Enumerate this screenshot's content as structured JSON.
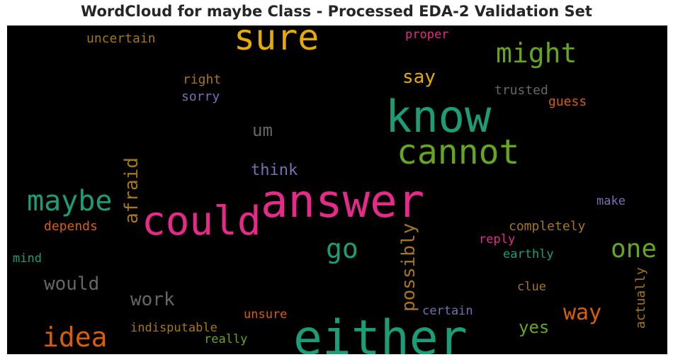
{
  "chart_data": {
    "type": "wordcloud",
    "title": "WordCloud for maybe Class - Processed EDA-2 Validation Set",
    "background": "#000000",
    "words": [
      {
        "text": "answer",
        "color": "#e7298a",
        "weight": 70
      },
      {
        "text": "either",
        "color": "#1b9e77",
        "weight": 72
      },
      {
        "text": "know",
        "color": "#1b9e77",
        "weight": 66
      },
      {
        "text": "sure",
        "color": "#e6ab02",
        "weight": 54
      },
      {
        "text": "could",
        "color": "#e7298a",
        "weight": 58
      },
      {
        "text": "cannot",
        "color": "#66a61e",
        "weight": 50
      },
      {
        "text": "maybe",
        "color": "#1b9e77",
        "weight": 44
      },
      {
        "text": "might",
        "color": "#66a61e",
        "weight": 40
      },
      {
        "text": "idea",
        "color": "#d95f02",
        "weight": 40
      },
      {
        "text": "one",
        "color": "#66a61e",
        "weight": 38
      },
      {
        "text": "go",
        "color": "#1b9e77",
        "weight": 38
      },
      {
        "text": "way",
        "color": "#d95f02",
        "weight": 32
      },
      {
        "text": "afraid",
        "color": "#a6761d",
        "weight": 28
      },
      {
        "text": "possibly",
        "color": "#a6761d",
        "weight": 28
      },
      {
        "text": "say",
        "color": "#e6ab02",
        "weight": 28
      },
      {
        "text": "would",
        "color": "#666666",
        "weight": 28
      },
      {
        "text": "work",
        "color": "#666666",
        "weight": 28
      },
      {
        "text": "yes",
        "color": "#66a61e",
        "weight": 26
      },
      {
        "text": "um",
        "color": "#666666",
        "weight": 26
      },
      {
        "text": "think",
        "color": "#7570b3",
        "weight": 24
      },
      {
        "text": "actually",
        "color": "#a6761d",
        "weight": 20
      },
      {
        "text": "trusted",
        "color": "#666666",
        "weight": 19
      },
      {
        "text": "guess",
        "color": "#d95f02",
        "weight": 19
      },
      {
        "text": "right",
        "color": "#a6761d",
        "weight": 19
      },
      {
        "text": "sorry",
        "color": "#7570b3",
        "weight": 19
      },
      {
        "text": "uncertain",
        "color": "#a6761d",
        "weight": 19
      },
      {
        "text": "proper",
        "color": "#e7298a",
        "weight": 18
      },
      {
        "text": "depends",
        "color": "#d95f02",
        "weight": 19
      },
      {
        "text": "completely",
        "color": "#a6761d",
        "weight": 19
      },
      {
        "text": "make",
        "color": "#7570b3",
        "weight": 18
      },
      {
        "text": "reply",
        "color": "#e7298a",
        "weight": 18
      },
      {
        "text": "earthly",
        "color": "#1b9e77",
        "weight": 18
      },
      {
        "text": "mind",
        "color": "#1b9e77",
        "weight": 18
      },
      {
        "text": "clue",
        "color": "#a6761d",
        "weight": 18
      },
      {
        "text": "certain",
        "color": "#7570b3",
        "weight": 18
      },
      {
        "text": "unsure",
        "color": "#d95f02",
        "weight": 18
      },
      {
        "text": "indisputable",
        "color": "#a6761d",
        "weight": 18
      },
      {
        "text": "really",
        "color": "#66a61e",
        "weight": 18
      }
    ]
  }
}
